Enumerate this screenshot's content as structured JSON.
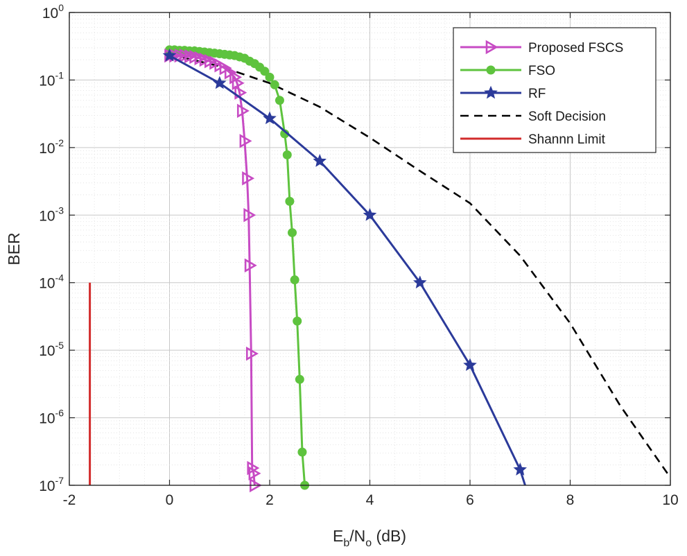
{
  "chart_data": {
    "type": "line",
    "title": "",
    "xlabel": {
      "main1": "E",
      "sub1": "b",
      "main2": "/N",
      "sub2": "o",
      "suffix": " (dB)"
    },
    "ylabel": "BER",
    "xlim": [
      -2,
      10
    ],
    "ylim_exponent": [
      -7,
      0
    ],
    "yscale": "log",
    "grid": true,
    "minor_grid": true,
    "xticks": [
      -2,
      0,
      2,
      4,
      6,
      8,
      10
    ],
    "yticks": [
      {
        "base": "10",
        "exp": "0",
        "value": 1
      },
      {
        "base": "10",
        "exp": "-1",
        "value": 0.1
      },
      {
        "base": "10",
        "exp": "-2",
        "value": 0.01
      },
      {
        "base": "10",
        "exp": "-3",
        "value": 0.001
      },
      {
        "base": "10",
        "exp": "-4",
        "value": 0.0001
      },
      {
        "base": "10",
        "exp": "-5",
        "value": 1e-05
      },
      {
        "base": "10",
        "exp": "-6",
        "value": 1e-06
      },
      {
        "base": "10",
        "exp": "-7",
        "value": 1e-07
      }
    ],
    "legend_position": "top-right",
    "series": [
      {
        "name": "Proposed FSCS",
        "color": "#c74bc4",
        "style": "solid",
        "marker": "triangle-right",
        "x": [
          0,
          0.1,
          0.2,
          0.3,
          0.4,
          0.5,
          0.6,
          0.7,
          0.8,
          0.9,
          1.0,
          1.1,
          1.2,
          1.3,
          1.35,
          1.4,
          1.45,
          1.5,
          1.55,
          1.58,
          1.6,
          1.63,
          1.65,
          1.68,
          1.7
        ],
        "y": [
          0.23,
          0.23,
          0.23,
          0.23,
          0.225,
          0.22,
          0.21,
          0.2,
          0.19,
          0.18,
          0.165,
          0.15,
          0.13,
          0.11,
          0.09,
          0.065,
          0.035,
          0.0125,
          0.0035,
          0.001,
          0.00018,
          8.9e-06,
          1.8e-07,
          1.5e-07,
          1e-07
        ]
      },
      {
        "name": "FSO",
        "color": "#5ec33e",
        "style": "solid",
        "marker": "circle",
        "x": [
          0,
          0.1,
          0.2,
          0.3,
          0.4,
          0.5,
          0.6,
          0.7,
          0.8,
          0.9,
          1.0,
          1.1,
          1.2,
          1.3,
          1.4,
          1.5,
          1.6,
          1.7,
          1.8,
          1.9,
          2.0,
          2.1,
          2.2,
          2.3,
          2.35,
          2.4,
          2.45,
          2.5,
          2.55,
          2.6,
          2.65,
          2.7
        ],
        "y": [
          0.28,
          0.28,
          0.275,
          0.275,
          0.27,
          0.27,
          0.265,
          0.26,
          0.255,
          0.25,
          0.245,
          0.24,
          0.235,
          0.23,
          0.22,
          0.21,
          0.19,
          0.175,
          0.155,
          0.135,
          0.11,
          0.085,
          0.05,
          0.016,
          0.0078,
          0.0016,
          0.00055,
          0.00011,
          2.7e-05,
          3.7e-06,
          3.1e-07,
          1e-07
        ]
      },
      {
        "name": "RF",
        "color": "#2b3a9a",
        "style": "solid",
        "marker": "star",
        "x": [
          0,
          1,
          2,
          3,
          4,
          5,
          6,
          7,
          7.1
        ],
        "y": [
          0.23,
          0.09,
          0.027,
          0.0063,
          0.001,
          0.0001,
          6e-06,
          1.7e-07,
          1e-07
        ]
      },
      {
        "name": "Soft Decision",
        "color": "#000000",
        "style": "dashed",
        "marker": "none",
        "x": [
          0,
          1,
          2,
          3,
          4,
          5,
          6,
          7,
          8,
          9,
          10
        ],
        "y": [
          0.24,
          0.16,
          0.09,
          0.04,
          0.014,
          0.0045,
          0.0015,
          0.00025,
          2.5e-05,
          1.5e-06,
          1.3e-07
        ]
      },
      {
        "name": "Shannn Limit",
        "color": "#d22b2b",
        "style": "solid",
        "marker": "none",
        "x": [
          -1.59,
          -1.59
        ],
        "y": [
          0.0001,
          1e-07
        ]
      }
    ]
  }
}
